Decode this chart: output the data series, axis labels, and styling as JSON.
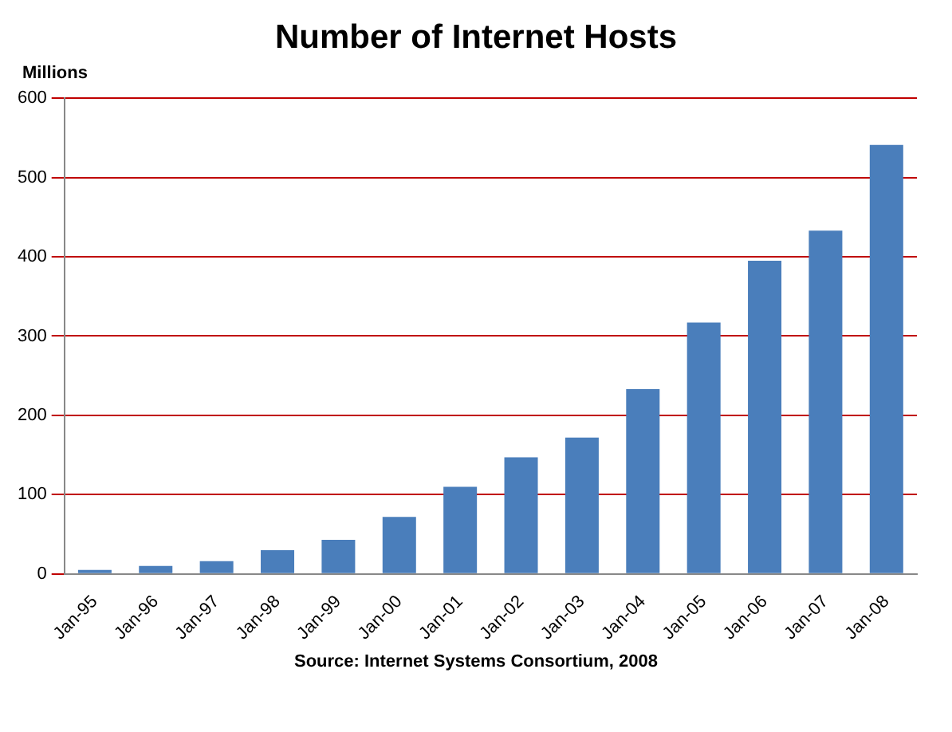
{
  "chart_data": {
    "type": "bar",
    "title": "Number of Internet Hosts",
    "ylabel": "Millions",
    "categories": [
      "Jan-95",
      "Jan-96",
      "Jan-97",
      "Jan-98",
      "Jan-99",
      "Jan-00",
      "Jan-01",
      "Jan-02",
      "Jan-03",
      "Jan-04",
      "Jan-05",
      "Jan-06",
      "Jan-07",
      "Jan-08"
    ],
    "values": [
      5,
      10,
      16,
      30,
      43,
      72,
      110,
      147,
      172,
      233,
      317,
      395,
      433,
      541
    ],
    "color": "#4a7ebb",
    "ylim": [
      0,
      600
    ],
    "yticks": [
      0,
      100,
      200,
      300,
      400,
      500,
      600
    ],
    "grid": "y",
    "annotations": [
      "Source:  Internet Systems Consortium, 2008"
    ]
  }
}
